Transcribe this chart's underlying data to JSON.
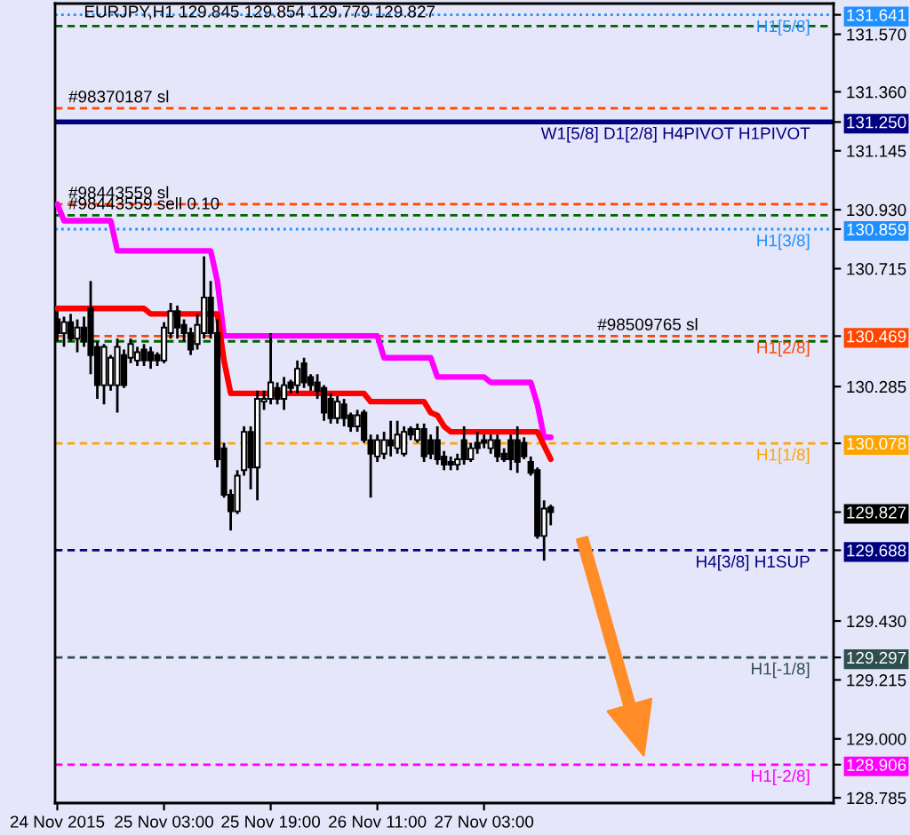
{
  "chart_data": {
    "type": "candlestick",
    "title": "EURJPY,H1 129.845 129.854 129.779 129.827",
    "x": [
      "2015-11-24T11:00",
      "2015-11-24T12:00",
      "2015-11-24T13:00",
      "2015-11-24T14:00",
      "2015-11-24T15:00",
      "2015-11-24T16:00",
      "2015-11-24T17:00",
      "2015-11-24T18:00",
      "2015-11-24T19:00",
      "2015-11-24T20:00",
      "2015-11-24T21:00",
      "2015-11-24T22:00",
      "2015-11-24T23:00",
      "2015-11-25T00:00",
      "2015-11-25T01:00",
      "2015-11-25T02:00",
      "2015-11-25T03:00",
      "2015-11-25T04:00",
      "2015-11-25T05:00",
      "2015-11-25T06:00",
      "2015-11-25T07:00",
      "2015-11-25T08:00",
      "2015-11-25T09:00",
      "2015-11-25T10:00",
      "2015-11-25T11:00",
      "2015-11-25T12:00",
      "2015-11-25T13:00",
      "2015-11-25T14:00",
      "2015-11-25T15:00",
      "2015-11-25T16:00",
      "2015-11-25T17:00",
      "2015-11-25T18:00",
      "2015-11-25T19:00",
      "2015-11-25T20:00",
      "2015-11-25T21:00",
      "2015-11-25T22:00",
      "2015-11-25T23:00",
      "2015-11-26T00:00",
      "2015-11-26T01:00",
      "2015-11-26T02:00",
      "2015-11-26T03:00",
      "2015-11-26T04:00",
      "2015-11-26T05:00",
      "2015-11-26T06:00",
      "2015-11-26T07:00",
      "2015-11-26T08:00",
      "2015-11-26T09:00",
      "2015-11-26T10:00",
      "2015-11-26T11:00",
      "2015-11-26T12:00",
      "2015-11-26T13:00",
      "2015-11-26T14:00",
      "2015-11-26T15:00",
      "2015-11-26T16:00",
      "2015-11-26T17:00",
      "2015-11-26T18:00",
      "2015-11-26T19:00",
      "2015-11-26T20:00",
      "2015-11-26T21:00",
      "2015-11-26T22:00",
      "2015-11-26T23:00",
      "2015-11-27T00:00",
      "2015-11-27T01:00",
      "2015-11-27T02:00",
      "2015-11-27T03:00",
      "2015-11-27T04:00",
      "2015-11-27T05:00",
      "2015-11-27T06:00",
      "2015-11-27T07:00",
      "2015-11-27T08:00",
      "2015-11-27T09:00",
      "2015-11-27T10:00",
      "2015-11-27T11:00",
      "2015-11-27T12:00",
      "2015-11-27T13:00"
    ],
    "ohlc": [
      [
        130.53,
        130.56,
        130.45,
        130.48
      ],
      [
        130.48,
        130.54,
        130.43,
        130.52
      ],
      [
        130.52,
        130.55,
        130.45,
        130.46
      ],
      [
        130.46,
        130.53,
        130.41,
        130.5
      ],
      [
        130.5,
        130.54,
        130.43,
        130.45
      ],
      [
        130.57,
        130.67,
        130.33,
        130.4
      ],
      [
        130.43,
        130.45,
        130.24,
        130.29
      ],
      [
        130.29,
        130.44,
        130.22,
        130.43
      ],
      [
        130.29,
        130.4,
        130.27,
        130.39
      ],
      [
        130.29,
        130.46,
        130.19,
        130.43
      ],
      [
        130.4,
        130.42,
        130.28,
        130.29
      ],
      [
        130.39,
        130.46,
        130.37,
        130.44
      ],
      [
        130.38,
        130.43,
        130.36,
        130.41
      ],
      [
        130.42,
        130.44,
        130.36,
        130.38
      ],
      [
        130.41,
        130.43,
        130.35,
        130.38
      ],
      [
        130.4,
        130.41,
        130.36,
        130.38
      ],
      [
        130.38,
        130.52,
        130.37,
        130.5
      ],
      [
        130.48,
        130.59,
        130.46,
        130.56
      ],
      [
        130.56,
        130.58,
        130.46,
        130.5
      ],
      [
        130.51,
        130.53,
        130.45,
        130.48
      ],
      [
        130.48,
        130.5,
        130.4,
        130.42
      ],
      [
        130.44,
        130.55,
        130.42,
        130.51
      ],
      [
        130.48,
        130.76,
        130.46,
        130.61
      ],
      [
        130.61,
        130.67,
        130.46,
        130.48
      ],
      [
        130.48,
        130.53,
        129.99,
        130.02
      ],
      [
        130.06,
        130.08,
        129.88,
        129.89
      ],
      [
        129.89,
        129.91,
        129.76,
        129.83
      ],
      [
        129.83,
        129.98,
        129.82,
        129.96
      ],
      [
        129.98,
        130.14,
        129.96,
        130.12
      ],
      [
        130.12,
        130.14,
        129.91,
        129.99
      ],
      [
        129.99,
        130.27,
        129.87,
        130.24
      ],
      [
        130.23,
        130.27,
        130.2,
        130.24
      ],
      [
        130.24,
        130.48,
        130.22,
        130.3
      ],
      [
        130.28,
        130.3,
        130.22,
        130.24
      ],
      [
        130.24,
        130.32,
        130.2,
        130.29
      ],
      [
        130.3,
        130.31,
        130.26,
        130.28
      ],
      [
        130.29,
        130.38,
        130.26,
        130.35
      ],
      [
        130.37,
        130.39,
        130.28,
        130.3
      ],
      [
        130.32,
        130.33,
        130.27,
        130.29
      ],
      [
        130.3,
        130.33,
        130.24,
        130.27
      ],
      [
        130.28,
        130.29,
        130.16,
        130.19
      ],
      [
        130.24,
        130.26,
        130.15,
        130.17
      ],
      [
        130.17,
        130.25,
        130.15,
        130.23
      ],
      [
        130.22,
        130.24,
        130.14,
        130.17
      ],
      [
        130.18,
        130.19,
        130.12,
        130.14
      ],
      [
        130.14,
        130.2,
        130.12,
        130.18
      ],
      [
        130.19,
        130.2,
        130.08,
        130.09
      ],
      [
        130.09,
        130.11,
        129.88,
        130.04
      ],
      [
        130.03,
        130.11,
        130.01,
        130.09
      ],
      [
        130.04,
        130.12,
        130.02,
        130.09
      ],
      [
        130.09,
        130.16,
        130.03,
        130.07
      ],
      [
        130.06,
        130.16,
        130.04,
        130.11
      ],
      [
        130.04,
        130.14,
        130.03,
        130.12
      ],
      [
        130.13,
        130.14,
        130.09,
        130.11
      ],
      [
        130.09,
        130.15,
        130.08,
        130.13
      ],
      [
        130.13,
        130.15,
        130.01,
        130.03
      ],
      [
        130.09,
        130.11,
        130.02,
        130.04
      ],
      [
        130.09,
        130.14,
        130.0,
        130.02
      ],
      [
        130.03,
        130.05,
        129.98,
        130.0
      ],
      [
        130.01,
        130.03,
        129.98,
        130.0
      ],
      [
        130.0,
        130.04,
        129.98,
        130.02
      ],
      [
        130.09,
        130.14,
        130.0,
        130.02
      ],
      [
        130.02,
        130.08,
        130.01,
        130.06
      ],
      [
        130.08,
        130.12,
        130.04,
        130.06
      ],
      [
        130.09,
        130.11,
        130.06,
        130.08
      ],
      [
        130.06,
        130.11,
        130.04,
        130.09
      ],
      [
        130.09,
        130.11,
        130.01,
        130.03
      ],
      [
        130.04,
        130.06,
        130.01,
        130.02
      ],
      [
        130.09,
        130.11,
        129.98,
        130.02
      ],
      [
        130.09,
        130.14,
        129.97,
        130.01
      ],
      [
        130.08,
        130.1,
        130.02,
        130.03
      ],
      [
        130.01,
        130.03,
        129.96,
        129.97
      ],
      [
        129.98,
        129.99,
        129.73,
        129.74
      ],
      [
        129.74,
        129.87,
        129.65,
        129.84
      ],
      [
        129.845,
        129.854,
        129.779,
        129.827
      ]
    ],
    "series": [
      {
        "type": "line",
        "color": "#ff00ff",
        "x": [
          "2015-11-24T11:00",
          "2015-11-24T12:00",
          "2015-11-24T19:00",
          "2015-11-24T20:00",
          "2015-11-25T10:00",
          "2015-11-25T11:00",
          "2015-11-25T12:00",
          "2015-11-26T11:00",
          "2015-11-26T12:00",
          "2015-11-26T19:00",
          "2015-11-26T20:00",
          "2015-11-27T03:00",
          "2015-11-27T04:00",
          "2015-11-27T10:00",
          "2015-11-27T11:00",
          "2015-11-27T12:00",
          "2015-11-27T13:00"
        ],
        "values": [
          130.95,
          130.89,
          130.89,
          130.78,
          130.78,
          130.67,
          130.47,
          130.47,
          130.39,
          130.39,
          130.32,
          130.32,
          130.3,
          130.3,
          130.22,
          130.1,
          130.1
        ]
      },
      {
        "type": "line",
        "color": "#ff0000",
        "x": [
          "2015-11-24T11:00",
          "2015-11-25T00:00",
          "2015-11-25T01:00",
          "2015-11-25T11:00",
          "2015-11-25T12:00",
          "2015-11-25T13:00",
          "2015-11-26T09:00",
          "2015-11-26T10:00",
          "2015-11-26T18:00",
          "2015-11-26T19:00",
          "2015-11-26T20:00",
          "2015-11-26T21:00",
          "2015-11-26T22:00",
          "2015-11-27T11:00",
          "2015-11-27T13:00"
        ],
        "values": [
          130.57,
          130.57,
          130.55,
          130.55,
          130.38,
          130.26,
          130.26,
          130.23,
          130.23,
          130.19,
          130.18,
          130.14,
          130.12,
          130.12,
          130.02
        ]
      }
    ],
    "ref_lines": [
      {
        "axis": "y",
        "value": 131.641,
        "label": "H1[5/8]",
        "color": "#1e90ff",
        "line_style": "dotted"
      },
      {
        "axis": "y",
        "value": 131.6,
        "color": "#006400",
        "line_style": "dashed"
      },
      {
        "axis": "y",
        "value": 131.3,
        "color": "#ff4500",
        "line_style": "dashed"
      },
      {
        "axis": "y",
        "value": 131.25,
        "label": "W1[5/8] D1[2/8] H4PIVOT H1PIVOT",
        "color": "#000080",
        "line_style": "solid"
      },
      {
        "axis": "y",
        "value": 130.95,
        "color": "#ff4500",
        "line_style": "dashed"
      },
      {
        "axis": "y",
        "value": 130.91,
        "color": "#006400",
        "line_style": "dashed"
      },
      {
        "axis": "y",
        "value": 130.859,
        "label": "H1[3/8]",
        "color": "#1e90ff",
        "line_style": "dotted"
      },
      {
        "axis": "y",
        "value": 130.469,
        "label": "H1[2/8]",
        "color": "#ff4500",
        "line_style": "dashed"
      },
      {
        "axis": "y",
        "value": 130.45,
        "color": "#006400",
        "line_style": "dashed"
      },
      {
        "axis": "y",
        "value": 130.078,
        "label": "H1[1/8]",
        "color": "#ffa500",
        "line_style": "dashed"
      },
      {
        "axis": "y",
        "value": 129.688,
        "label": "H4[3/8] H1SUP",
        "color": "#000080",
        "line_style": "dashed"
      },
      {
        "axis": "y",
        "value": 129.297,
        "label": "H1[-1/8]",
        "color": "#2f4f4f",
        "line_style": "dashed"
      },
      {
        "axis": "y",
        "value": 128.906,
        "label": "H1[-2/8]",
        "color": "#ff00ff",
        "line_style": "dashed"
      }
    ],
    "annotations": [
      {
        "text": "#98370187 sl",
        "x": "2015-11-24T12:40",
        "y": 131.3
      },
      {
        "text": "#98443559 sl",
        "x": "2015-11-24T12:40",
        "y": 130.95
      },
      {
        "text": "#98443559 sell 0.10",
        "x": "2015-11-24T12:40",
        "y": 130.91
      },
      {
        "text": "#98509765 sl",
        "x": "2015-11-27T20:00",
        "y": 130.469
      }
    ],
    "xlim": [
      "2015-11-24T10:40",
      "2015-11-29T07:25"
    ],
    "ylim": [
      128.766,
      131.682
    ],
    "xticks": [
      {
        "value": "2015-11-24T11:00",
        "label": "24 Nov 2015"
      },
      {
        "value": "2015-11-25T03:00",
        "label": "25 Nov 03:00"
      },
      {
        "value": "2015-11-25T19:00",
        "label": "25 Nov 19:00"
      },
      {
        "value": "2015-11-26T11:00",
        "label": "26 Nov 11:00"
      },
      {
        "value": "2015-11-27T03:00",
        "label": "27 Nov 03:00"
      }
    ],
    "yticks": [
      {
        "value": 131.641,
        "label": "131.641"
      },
      {
        "value": 131.57,
        "label": "131.570"
      },
      {
        "value": 131.36,
        "label": "131.360"
      },
      {
        "value": 131.25,
        "label": "131.250"
      },
      {
        "value": 131.145,
        "label": "131.145"
      },
      {
        "value": 130.93,
        "label": "130.930"
      },
      {
        "value": 130.859,
        "label": "130.859"
      },
      {
        "value": 130.715,
        "label": "130.715"
      },
      {
        "value": 130.469,
        "label": "130.469"
      },
      {
        "value": 130.285,
        "label": "130.285"
      },
      {
        "value": 130.078,
        "label": "130.078"
      },
      {
        "value": 129.827,
        "label": "129.827"
      },
      {
        "value": 129.688,
        "label": "129.688"
      },
      {
        "value": 129.43,
        "label": "129.430"
      },
      {
        "value": 129.297,
        "label": "129.297"
      },
      {
        "value": 129.215,
        "label": "129.215"
      },
      {
        "value": 129.0,
        "label": "129.000"
      },
      {
        "value": 128.906,
        "label": "128.906"
      },
      {
        "value": 128.785,
        "label": "128.785"
      }
    ]
  }
}
